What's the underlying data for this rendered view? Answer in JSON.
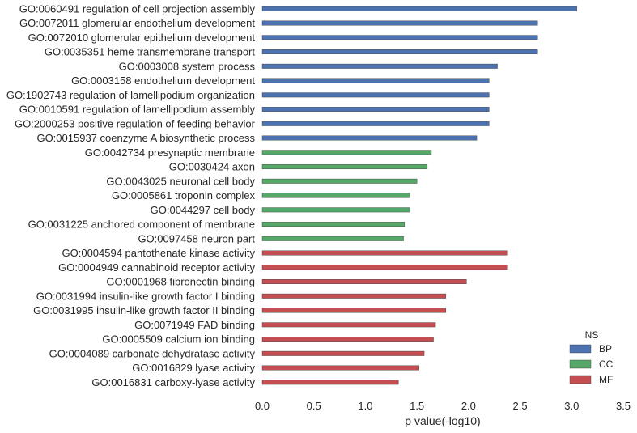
{
  "chart_data": {
    "type": "bar",
    "orientation": "horizontal",
    "xlabel": "p value(-log10)",
    "xlim": [
      0,
      3.5
    ],
    "xticks": [
      "0.0",
      "0.5",
      "1.0",
      "1.5",
      "2.0",
      "2.5",
      "3.0",
      "3.5"
    ],
    "grid": false,
    "legend": {
      "title": "NS",
      "placement": "bottom-right",
      "entries": [
        {
          "name": "BP",
          "color": "#4c72b0"
        },
        {
          "name": "CC",
          "color": "#55a868"
        },
        {
          "name": "MF",
          "color": "#c44e52"
        }
      ]
    },
    "categories": [
      {
        "label": "GO:0060491 regulation of cell projection assembly",
        "value": 3.05,
        "group": "BP"
      },
      {
        "label": "GO:0072011 glomerular endothelium development",
        "value": 2.67,
        "group": "BP"
      },
      {
        "label": "GO:0072010 glomerular epithelium development",
        "value": 2.67,
        "group": "BP"
      },
      {
        "label": "GO:0035351 heme transmembrane transport",
        "value": 2.67,
        "group": "BP"
      },
      {
        "label": "GO:0003008 system process",
        "value": 2.28,
        "group": "BP"
      },
      {
        "label": "GO:0003158 endothelium development",
        "value": 2.2,
        "group": "BP"
      },
      {
        "label": "GO:1902743 regulation of lamellipodium organization",
        "value": 2.2,
        "group": "BP"
      },
      {
        "label": "GO:0010591 regulation of lamellipodium assembly",
        "value": 2.2,
        "group": "BP"
      },
      {
        "label": "GO:2000253 positive regulation of feeding behavior",
        "value": 2.2,
        "group": "BP"
      },
      {
        "label": "GO:0015937 coenzyme A biosynthetic process",
        "value": 2.08,
        "group": "BP"
      },
      {
        "label": "GO:0042734 presynaptic membrane",
        "value": 1.64,
        "group": "CC"
      },
      {
        "label": "GO:0030424 axon",
        "value": 1.6,
        "group": "CC"
      },
      {
        "label": "GO:0043025 neuronal cell body",
        "value": 1.5,
        "group": "CC"
      },
      {
        "label": "GO:0005861 troponin complex",
        "value": 1.43,
        "group": "CC"
      },
      {
        "label": "GO:0044297 cell body",
        "value": 1.43,
        "group": "CC"
      },
      {
        "label": "GO:0031225 anchored component of membrane",
        "value": 1.38,
        "group": "CC"
      },
      {
        "label": "GO:0097458 neuron part",
        "value": 1.37,
        "group": "CC"
      },
      {
        "label": "GO:0004594 pantothenate kinase activity",
        "value": 2.38,
        "group": "MF"
      },
      {
        "label": "GO:0004949 cannabinoid receptor activity",
        "value": 2.38,
        "group": "MF"
      },
      {
        "label": "GO:0001968 fibronectin binding",
        "value": 1.98,
        "group": "MF"
      },
      {
        "label": "GO:0031994 insulin-like growth factor I binding",
        "value": 1.78,
        "group": "MF"
      },
      {
        "label": "GO:0031995 insulin-like growth factor II binding",
        "value": 1.78,
        "group": "MF"
      },
      {
        "label": "GO:0071949 FAD binding",
        "value": 1.68,
        "group": "MF"
      },
      {
        "label": "GO:0005509 calcium ion binding",
        "value": 1.66,
        "group": "MF"
      },
      {
        "label": "GO:0004089 carbonate dehydratase activity",
        "value": 1.57,
        "group": "MF"
      },
      {
        "label": "GO:0016829 lyase activity",
        "value": 1.52,
        "group": "MF"
      },
      {
        "label": "GO:0016831 carboxy-lyase activity",
        "value": 1.32,
        "group": "MF"
      }
    ]
  }
}
